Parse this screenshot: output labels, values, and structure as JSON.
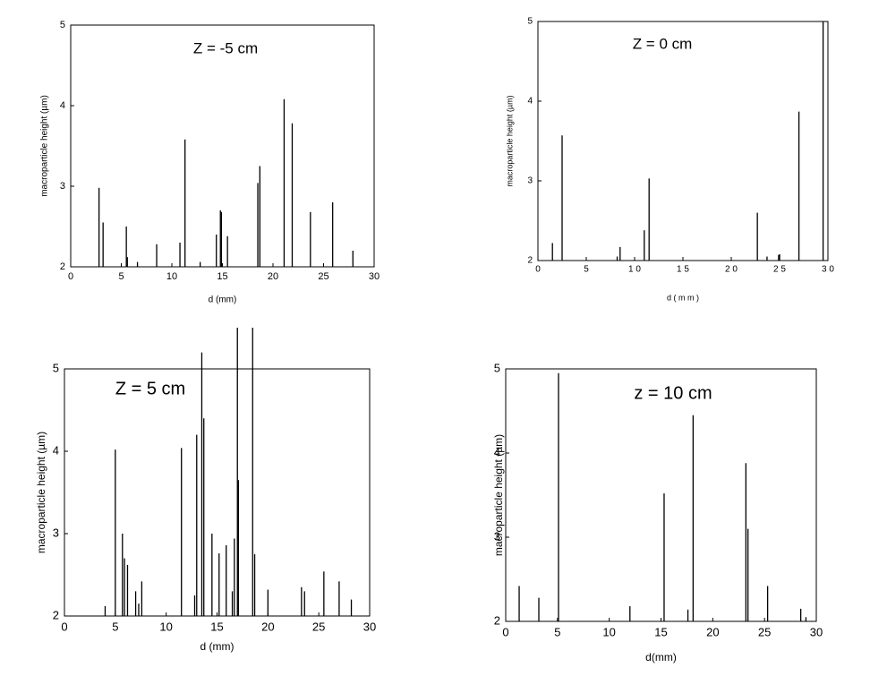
{
  "chart_data": [
    {
      "type": "stem",
      "title": "Z = -5 cm",
      "x_label": "d (mm)",
      "y_label": "macroparticle height (µm)",
      "color": "#000000",
      "x": [
        2.8,
        3.2,
        5.5,
        5.6,
        6.6,
        8.5,
        10.8,
        11.3,
        12.8,
        14.4,
        14.8,
        14.9,
        15.5,
        18.5,
        18.7,
        21.1,
        21.9,
        23.7,
        25.9,
        27.9
      ],
      "values": [
        2.98,
        2.55,
        2.5,
        2.12,
        2.06,
        2.28,
        2.3,
        3.58,
        2.06,
        2.4,
        2.7,
        2.68,
        2.38,
        3.04,
        3.25,
        4.08,
        3.78,
        2.68,
        2.8,
        2.2
      ],
      "xlim": [
        0,
        30
      ],
      "ylim": [
        2,
        5
      ],
      "xticks": [
        0,
        5,
        10,
        15,
        20,
        25,
        30
      ],
      "yticks": [
        2,
        3,
        4,
        5
      ]
    },
    {
      "type": "stem",
      "title": "Z = 0 cm",
      "x_label": "d ( m m )",
      "y_label": "macroparticle height (µm)",
      "color": "#000000",
      "x": [
        1.5,
        2.5,
        8.2,
        8.5,
        11.0,
        11.5,
        22.7,
        23.7,
        24.9,
        25.0,
        27.0,
        29.5
      ],
      "values": [
        2.22,
        3.57,
        2.05,
        2.17,
        2.38,
        3.03,
        2.6,
        2.05,
        2.07,
        2.08,
        3.87,
        5.0
      ],
      "xlim": [
        0,
        30
      ],
      "ylim": [
        2,
        5
      ],
      "xticks": [
        0,
        5,
        {
          "value": 10,
          "label": "1 0"
        },
        {
          "value": 15,
          "label": "1 5"
        },
        {
          "value": 20,
          "label": "2 0"
        },
        {
          "value": 25,
          "label": "2 5"
        },
        {
          "value": 30,
          "label": "3 0"
        }
      ],
      "yticks": [
        2,
        3,
        4,
        5
      ]
    },
    {
      "type": "stem",
      "title": "Z = 5 cm",
      "x_label": "d (mm)",
      "y_label": "macroparticle height (µm)",
      "color": "#000000",
      "x": [
        4.0,
        5.0,
        5.2,
        5.7,
        5.9,
        6.2,
        7.0,
        7.3,
        7.6,
        11.5,
        12.8,
        13.0,
        13.5,
        13.7,
        14.5,
        15.2,
        15.9,
        16.5,
        16.7,
        17.0,
        17.1,
        18.5,
        18.7,
        20.0,
        23.3,
        23.6,
        25.5,
        27.0,
        28.2
      ],
      "values": [
        2.12,
        4.02,
        2.0,
        3.0,
        2.7,
        2.62,
        2.3,
        2.15,
        2.42,
        4.04,
        2.25,
        4.2,
        5.2,
        4.4,
        3.0,
        2.76,
        2.86,
        2.3,
        2.94,
        5.5,
        3.65,
        5.5,
        2.75,
        2.32,
        2.35,
        2.3,
        2.54,
        2.42,
        2.2
      ],
      "xlim": [
        0,
        30
      ],
      "ylim": [
        2,
        5
      ],
      "xticks": [
        0,
        5,
        10,
        15,
        20,
        25,
        30
      ],
      "yticks": [
        2,
        3,
        4,
        5
      ]
    },
    {
      "type": "stem",
      "title": "z = 10 cm",
      "x_label": "d(mm)",
      "y_label": "macroparticle height (µm)",
      "color": "#000000",
      "x": [
        1.3,
        3.2,
        5.1,
        12.0,
        15.3,
        17.6,
        18.1,
        23.2,
        23.4,
        25.3,
        28.5,
        29.0
      ],
      "values": [
        2.42,
        2.28,
        4.95,
        2.18,
        3.52,
        2.14,
        4.45,
        3.88,
        3.1,
        2.42,
        2.15,
        2.05
      ],
      "xlim": [
        0,
        30
      ],
      "ylim": [
        2,
        5
      ],
      "xticks": [
        0,
        5,
        10,
        15,
        20,
        25,
        30
      ],
      "yticks": [
        2,
        3,
        4,
        5
      ]
    }
  ]
}
